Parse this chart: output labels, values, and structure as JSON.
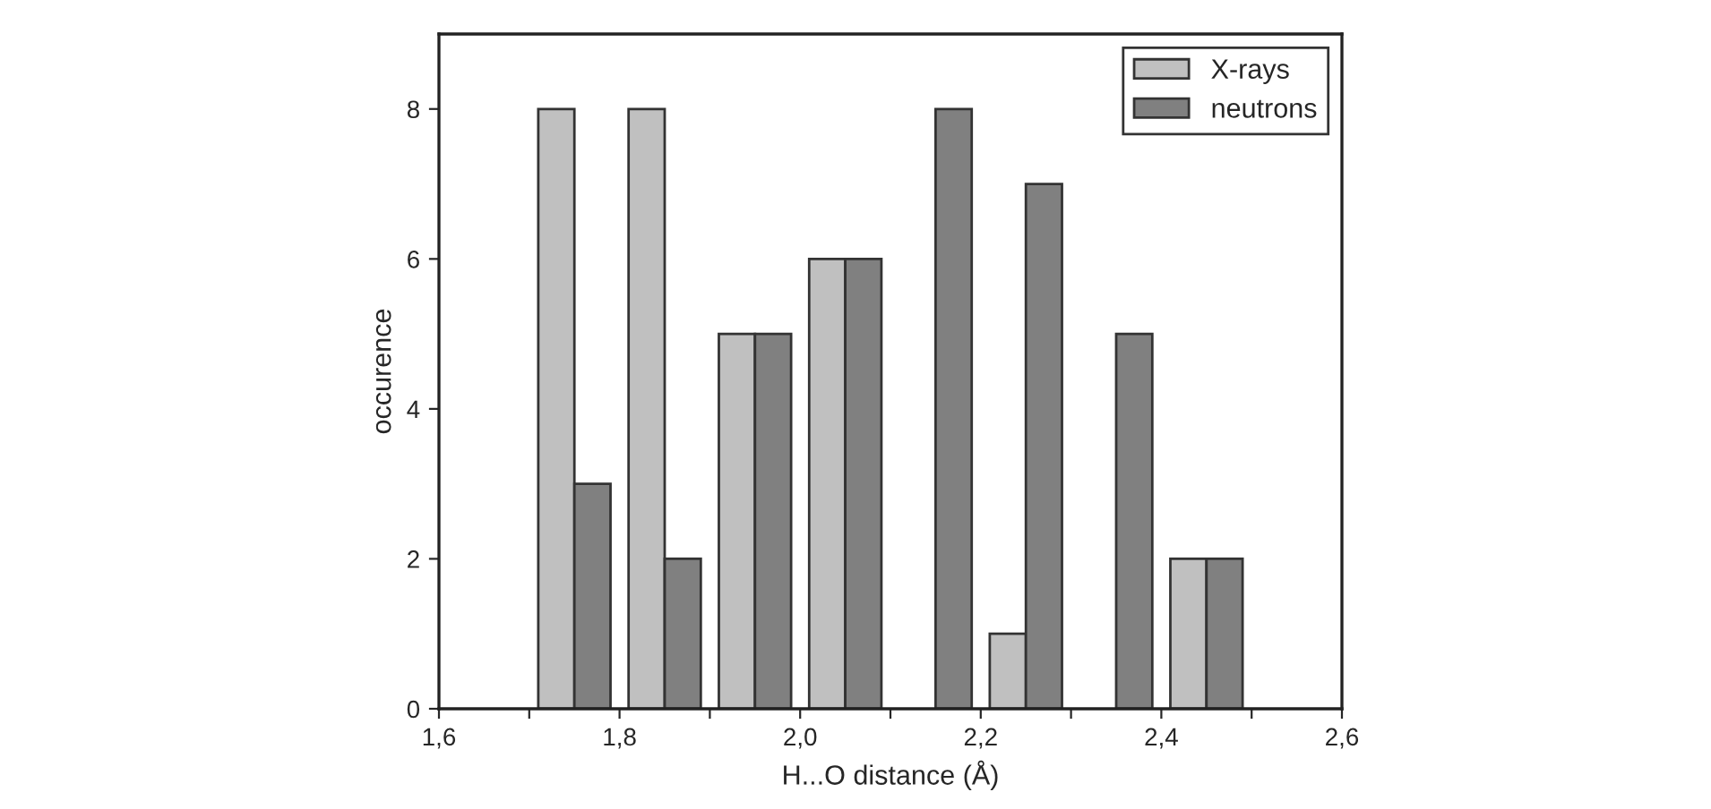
{
  "chart_data": {
    "type": "bar",
    "xlabel": "H...O distance (Å)",
    "ylabel": "occurence",
    "xlim": [
      1.6,
      2.6
    ],
    "ylim": [
      0,
      9
    ],
    "xticks": [
      {
        "value": 1.6,
        "label": "1,6"
      },
      {
        "value": 1.7,
        "label": null
      },
      {
        "value": 1.8,
        "label": "1,8"
      },
      {
        "value": 1.9,
        "label": null
      },
      {
        "value": 2.0,
        "label": "2,0"
      },
      {
        "value": 2.1,
        "label": null
      },
      {
        "value": 2.2,
        "label": "2,2"
      },
      {
        "value": 2.3,
        "label": null
      },
      {
        "value": 2.4,
        "label": "2,4"
      },
      {
        "value": 2.5,
        "label": null
      },
      {
        "value": 2.6,
        "label": "2,6"
      }
    ],
    "yticks": [
      0,
      2,
      4,
      6,
      8
    ],
    "series": [
      {
        "name": "X-rays",
        "color": "#c0c0c0",
        "x": [
          1.73,
          1.83,
          1.93,
          2.03,
          2.13,
          2.23,
          2.33,
          2.43
        ],
        "values": [
          8,
          8,
          5,
          6,
          null,
          1,
          null,
          2
        ]
      },
      {
        "name": "neutrons",
        "color": "#808080",
        "x": [
          1.77,
          1.87,
          1.97,
          2.07,
          2.17,
          2.27,
          2.37,
          2.47
        ],
        "values": [
          3,
          2,
          5,
          6,
          8,
          7,
          5,
          2
        ]
      }
    ],
    "legend": "top right",
    "grid": false
  }
}
